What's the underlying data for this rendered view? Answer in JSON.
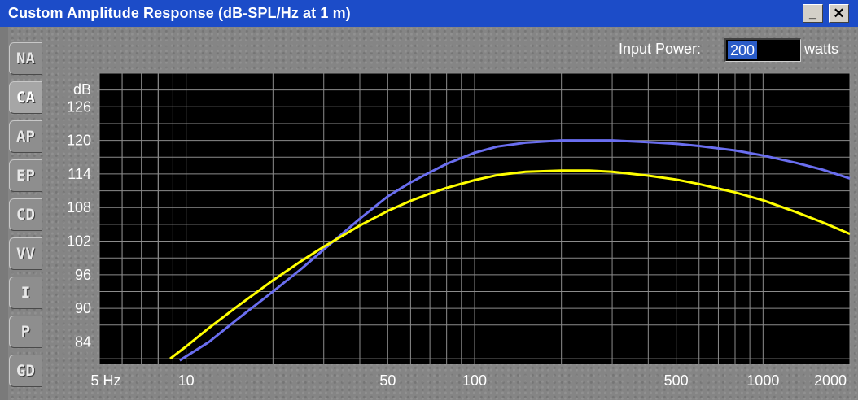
{
  "window": {
    "title": "Custom Amplitude Response (dB-SPL/Hz at 1 m)",
    "minimize_glyph": "_",
    "close_glyph": "✕"
  },
  "tabs": [
    {
      "label": "NA",
      "active": false
    },
    {
      "label": "CA",
      "active": true
    },
    {
      "label": "AP",
      "active": false
    },
    {
      "label": "EP",
      "active": false
    },
    {
      "label": "CD",
      "active": false
    },
    {
      "label": "VV",
      "active": false
    },
    {
      "label": "I",
      "active": false
    },
    {
      "label": "P",
      "active": false
    },
    {
      "label": "GD",
      "active": false
    }
  ],
  "input_power": {
    "label": "Input Power:",
    "value": "200",
    "unit": "watts"
  },
  "colors": {
    "titlebar": "#1c4cc8",
    "plot_bg": "#000000",
    "grid": "#8c8c8c",
    "series_blue": "#6a6ef0",
    "series_yellow": "#ffff00"
  },
  "chart_data": {
    "type": "line",
    "x_scale": "log",
    "grid": true,
    "ylabel": "dB",
    "xlim": [
      5,
      2000
    ],
    "ylim": [
      80,
      132
    ],
    "y_ticks": [
      84,
      90,
      96,
      102,
      108,
      114,
      120,
      126
    ],
    "x_ticks": [
      {
        "value": 5,
        "label": "5 Hz"
      },
      {
        "value": 10,
        "label": "10"
      },
      {
        "value": 50,
        "label": "50"
      },
      {
        "value": 100,
        "label": "100"
      },
      {
        "value": 500,
        "label": "500"
      },
      {
        "value": 1000,
        "label": "1000"
      },
      {
        "value": 2000,
        "label": "2000"
      }
    ],
    "series": [
      {
        "color": "#6a6ef0",
        "points": [
          [
            9.5,
            80.7
          ],
          [
            12,
            84
          ],
          [
            15,
            88
          ],
          [
            20,
            93
          ],
          [
            25,
            97
          ],
          [
            30,
            100.5
          ],
          [
            40,
            106
          ],
          [
            50,
            110
          ],
          [
            60,
            112.5
          ],
          [
            70,
            114.3
          ],
          [
            80,
            115.8
          ],
          [
            100,
            117.8
          ],
          [
            120,
            118.9
          ],
          [
            150,
            119.6
          ],
          [
            200,
            120
          ],
          [
            300,
            120
          ],
          [
            400,
            119.7
          ],
          [
            500,
            119.4
          ],
          [
            600,
            119
          ],
          [
            800,
            118.2
          ],
          [
            1000,
            117.3
          ],
          [
            1300,
            116
          ],
          [
            1600,
            114.8
          ],
          [
            2000,
            113.2
          ]
        ]
      },
      {
        "color": "#ffff00",
        "points": [
          [
            8.8,
            81
          ],
          [
            10,
            83.2
          ],
          [
            12,
            86.5
          ],
          [
            15,
            90.3
          ],
          [
            20,
            95
          ],
          [
            25,
            98.4
          ],
          [
            30,
            101
          ],
          [
            40,
            104.8
          ],
          [
            50,
            107.4
          ],
          [
            60,
            109.2
          ],
          [
            70,
            110.5
          ],
          [
            80,
            111.5
          ],
          [
            100,
            112.9
          ],
          [
            120,
            113.8
          ],
          [
            150,
            114.4
          ],
          [
            200,
            114.6
          ],
          [
            250,
            114.6
          ],
          [
            300,
            114.4
          ],
          [
            400,
            113.7
          ],
          [
            500,
            113
          ],
          [
            600,
            112.2
          ],
          [
            800,
            110.7
          ],
          [
            1000,
            109.3
          ],
          [
            1300,
            107.2
          ],
          [
            1600,
            105.4
          ],
          [
            2000,
            103.3
          ]
        ]
      }
    ]
  }
}
